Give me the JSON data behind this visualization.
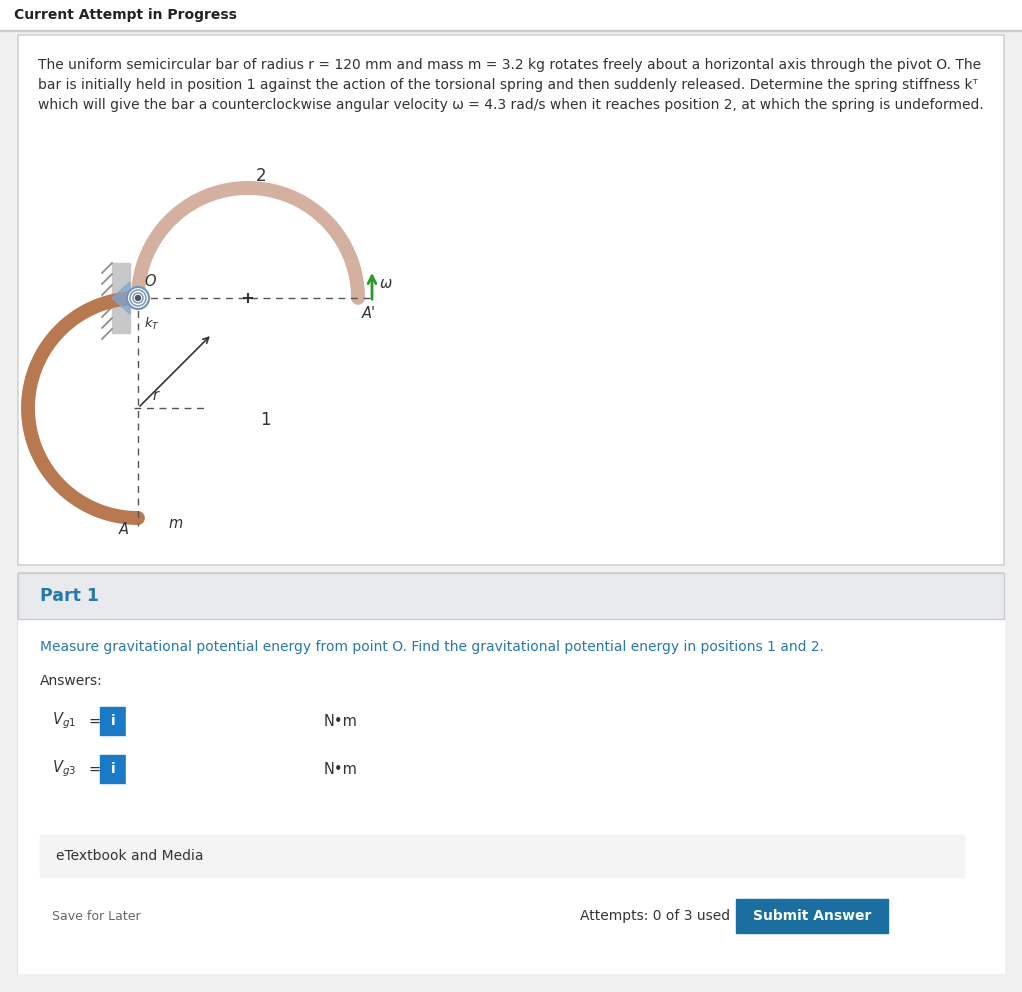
{
  "bg_color": "#f0f0f0",
  "header_text": "Current Attempt in Progress",
  "part1_color": "#2878a8",
  "semi_color_pos2": "#d4b0a0",
  "semi_color_pos1": "#b87850",
  "pivot_blue": "#7090c0",
  "wall_fill": "#c0c0c0",
  "wall_hatch": "#888888",
  "dashed_color": "#555555",
  "arrow_green": "#2a9a2a",
  "label_color": "#333333",
  "box_bg": "#ffffff",
  "part1_bg": "#e8eaed",
  "input_border": "#aaaaaa",
  "input_bg": "#ffffff",
  "blue_btn": "#1a7ac8",
  "submit_btn": "#1a6fa0",
  "etb_bg": "#f4f4f4",
  "etb_border": "#cccccc",
  "line1": "The uniform semicircular bar of radius r = 120 mm and mass m = 3.2 kg rotates freely about a horizontal axis through the pivot O. The",
  "line2": "bar is initially held in position 1 against the action of the torsional spring and then suddenly released. Determine the spring stiffness kᵀ",
  "line3": "which will give the bar a counterclockwise angular velocity ω = 4.3 rad/s when it reaches position 2, at which the spring is undeformed.",
  "instruction": "Measure gravitational potential energy from point O. Find the gravitational potential energy in positions 1 and 2.",
  "nom": "N•m"
}
